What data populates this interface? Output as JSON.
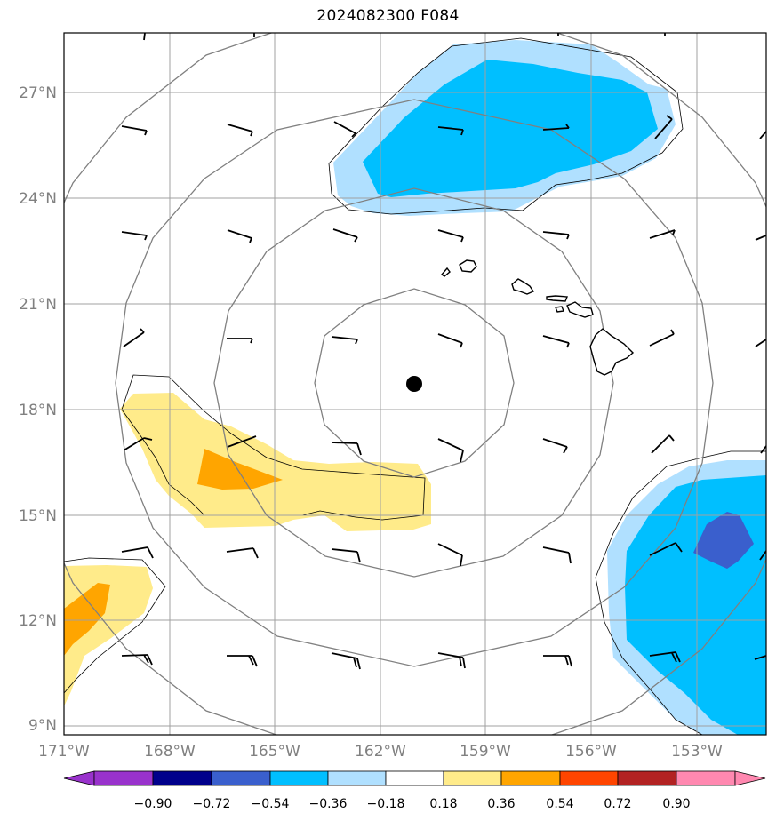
{
  "title": "2024082300 F084",
  "lat_labels": [
    {
      "value": 27,
      "text": "27°N"
    },
    {
      "value": 24,
      "text": "24°N"
    },
    {
      "value": 21,
      "text": "21°N"
    },
    {
      "value": 18,
      "text": "18°N"
    },
    {
      "value": 15,
      "text": "15°N"
    },
    {
      "value": 12,
      "text": "12°N"
    },
    {
      "value": 9,
      "text": "9°N"
    }
  ],
  "lon_labels": [
    {
      "value": -171,
      "text": "171°W"
    },
    {
      "value": -168,
      "text": "168°W"
    },
    {
      "value": -165,
      "text": "165°W"
    },
    {
      "value": -162,
      "text": "162°W"
    },
    {
      "value": -159,
      "text": "159°W"
    },
    {
      "value": -156,
      "text": "156°W"
    },
    {
      "value": -153,
      "text": "153°W"
    }
  ],
  "map_extent": {
    "lon_min": -171,
    "lon_max": -151,
    "lat_min": 8.75,
    "lat_max": 28.6
  },
  "center_marker": {
    "lon": -161,
    "lat": 18.7
  },
  "range_rings_deg": [
    2.8,
    5.6,
    8.4,
    11.2
  ],
  "colorbar": {
    "colors": [
      "#9932cc",
      "#00008b",
      "#3a5fcd",
      "#00bfff",
      "#b0e0ff",
      "#ffffff",
      "#ffeb8a",
      "#ffa500",
      "#ff4500",
      "#b22222",
      "#ff88b0"
    ],
    "tick_labels": [
      "−0.90",
      "−0.72",
      "−0.54",
      "−0.36",
      "−0.18",
      "0.18",
      "0.36",
      "0.54",
      "0.72",
      "0.90"
    ],
    "extend": "both"
  },
  "colors": {
    "light_blue": "#b0e0ff",
    "deep_sky_blue": "#00bfff",
    "royal_blue": "#3a5fcd",
    "light_yellow": "#ffeb8a",
    "orange": "#ffa500",
    "grid": "#a0a0a0",
    "ring": "#808080"
  }
}
